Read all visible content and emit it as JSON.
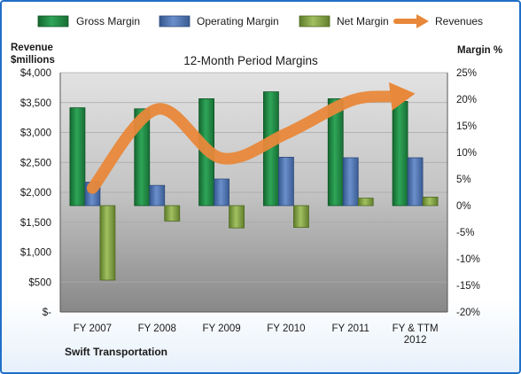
{
  "chart_data": {
    "type": "bar",
    "title": "12-Month Period Margins",
    "company": "Swift Transportation",
    "categories": [
      [
        "FY 2007"
      ],
      [
        "FY 2008"
      ],
      [
        "FY 2009"
      ],
      [
        "FY 2010"
      ],
      [
        "FY 2011"
      ],
      [
        "FY & TTM",
        "2012"
      ]
    ],
    "series": [
      {
        "name": "Gross Margin",
        "axis": "right",
        "values": [
          18.4,
          18.2,
          20.1,
          21.4,
          20.1,
          19.6
        ]
      },
      {
        "name": "Operating Margin",
        "axis": "right",
        "values": [
          4.4,
          3.8,
          5.0,
          9.1,
          9.0,
          9.0
        ]
      },
      {
        "name": "Net Margin",
        "axis": "right",
        "values": [
          -14.0,
          -2.9,
          -4.2,
          -4.1,
          1.4,
          1.6
        ]
      },
      {
        "name": "Revenues",
        "axis": "left",
        "type": "line",
        "values": [
          2070,
          3390,
          2570,
          2980,
          3530,
          3650
        ]
      }
    ],
    "left_axis": {
      "title_lines": [
        "Revenue",
        "$millions"
      ],
      "ticks": [
        "$-",
        "$500",
        "$1,000",
        "$1,500",
        "$2,000",
        "$2,500",
        "$3,000",
        "$3,500",
        "$4,000"
      ],
      "min": 0,
      "max": 4000,
      "step": 500
    },
    "right_axis": {
      "title": "Margin %",
      "ticks": [
        "-20%",
        "-15%",
        "-10%",
        "-5%",
        "0%",
        "5%",
        "10%",
        "15%",
        "20%",
        "25%"
      ],
      "min": -20,
      "max": 25,
      "step": 5
    },
    "colors": {
      "gross": "#1f8a45",
      "operating": "#4a6fae",
      "net": "#7fa040",
      "revenues": "#e8883a",
      "background_top": "#dcdcdc",
      "background_bottom": "#8a8a8a",
      "frame": "#1f6fc8"
    },
    "legend_position": "top",
    "grid": true
  }
}
